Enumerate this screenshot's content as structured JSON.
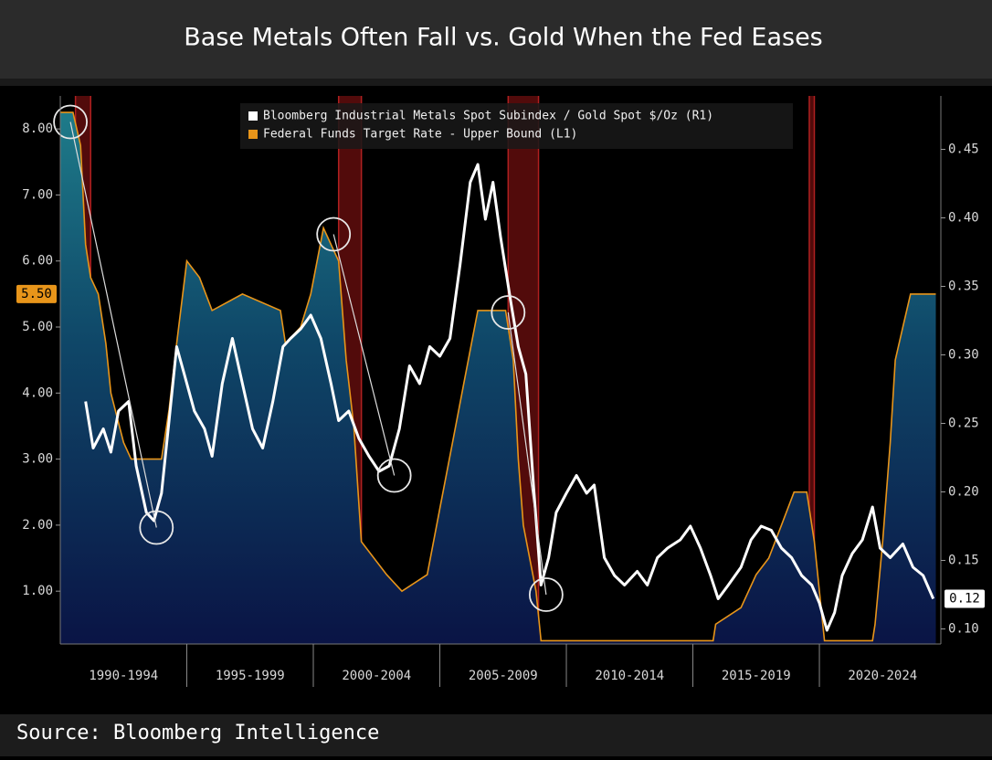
{
  "chart_data": {
    "type": "line-area",
    "title": "Base Metals Often Fall vs. Gold When the Fed Eases",
    "source": "Source: Bloomberg Intelligence",
    "xlim": [
      1990,
      2024.8
    ],
    "xticks": [
      {
        "value": 1992.5,
        "label": "1990-1994"
      },
      {
        "value": 1997.5,
        "label": "1995-1999"
      },
      {
        "value": 2002.5,
        "label": "2000-2004"
      },
      {
        "value": 2007.5,
        "label": "2005-2009"
      },
      {
        "value": 2012.5,
        "label": "2010-2014"
      },
      {
        "value": 2017.5,
        "label": "2015-2019"
      },
      {
        "value": 2022.5,
        "label": "2020-2024"
      }
    ],
    "ylim": [
      0.2,
      8.5
    ],
    "yticks": [
      {
        "value": 1,
        "label": "1.00"
      },
      {
        "value": 2,
        "label": "2.00"
      },
      {
        "value": 3,
        "label": "3.00"
      },
      {
        "value": 4,
        "label": "4.00"
      },
      {
        "value": 5,
        "label": "5.00"
      },
      {
        "value": 6,
        "label": "6.00"
      },
      {
        "value": 7,
        "label": "7.00"
      },
      {
        "value": 8,
        "label": "8.00"
      }
    ],
    "y2lim": [
      0.089,
      0.489
    ],
    "y2ticks": [
      {
        "value": 0.1,
        "label": "0.10"
      },
      0.15,
      {
        "value": 0.2,
        "label": "0.20"
      },
      0.25,
      {
        "value": 0.3,
        "label": "0.30"
      },
      0.35,
      {
        "value": 0.4,
        "label": "0.40"
      },
      0.45
    ],
    "easing_periods": [
      [
        1990.6,
        1991.2
      ],
      [
        2001.0,
        2001.9
      ],
      [
        2007.7,
        2008.9
      ],
      [
        2019.6,
        2019.8
      ]
    ],
    "highlights": [
      {
        "x": 1990.4,
        "y2": 0.47
      },
      {
        "x": 1993.8,
        "y2": 0.174
      },
      {
        "x": 2000.8,
        "y2": 0.388
      },
      {
        "x": 2003.2,
        "y2": 0.212
      },
      {
        "x": 2007.7,
        "y2": 0.331
      },
      {
        "x": 2009.2,
        "y2": 0.125
      }
    ],
    "series": [
      {
        "name": "Bloomberg Industrial Metals Spot Subindex / Gold Spot $/Oz (R1)",
        "color": "#ffffff",
        "axis": "y2",
        "style": "line",
        "x": [
          1991.0,
          1991.3,
          1991.7,
          1992.0,
          1992.3,
          1992.7,
          1993.0,
          1993.4,
          1993.7,
          1994.0,
          1994.3,
          1994.6,
          1994.9,
          1995.3,
          1995.7,
          1996.0,
          1996.4,
          1996.8,
          1997.2,
          1997.6,
          1998.0,
          1998.4,
          1998.8,
          1999.1,
          1999.5,
          1999.9,
          2000.3,
          2000.7,
          2001.0,
          2001.4,
          2001.8,
          2002.2,
          2002.6,
          2003.0,
          2003.4,
          2003.8,
          2004.2,
          2004.6,
          2005.0,
          2005.4,
          2005.8,
          2006.2,
          2006.5,
          2006.8,
          2007.1,
          2007.4,
          2007.8,
          2008.1,
          2008.4,
          2008.7,
          2009.0,
          2009.3,
          2009.6,
          2010.0,
          2010.4,
          2010.8,
          2011.1,
          2011.5,
          2011.9,
          2012.3,
          2012.8,
          2013.2,
          2013.6,
          2014.0,
          2014.5,
          2014.9,
          2015.3,
          2015.7,
          2016.0,
          2016.4,
          2016.9,
          2017.3,
          2017.7,
          2018.1,
          2018.5,
          2018.9,
          2019.3,
          2019.7,
          2020.0,
          2020.3,
          2020.6,
          2020.9,
          2021.3,
          2021.7,
          2022.1,
          2022.4,
          2022.8,
          2023.3,
          2023.7,
          2024.1,
          2024.5
        ],
        "values": [
          0.266,
          0.232,
          0.246,
          0.229,
          0.259,
          0.266,
          0.219,
          0.185,
          0.179,
          0.199,
          0.252,
          0.306,
          0.286,
          0.259,
          0.246,
          0.226,
          0.279,
          0.312,
          0.279,
          0.246,
          0.232,
          0.266,
          0.306,
          0.312,
          0.319,
          0.329,
          0.312,
          0.279,
          0.252,
          0.259,
          0.239,
          0.226,
          0.215,
          0.219,
          0.246,
          0.292,
          0.279,
          0.306,
          0.299,
          0.312,
          0.366,
          0.426,
          0.439,
          0.399,
          0.426,
          0.386,
          0.339,
          0.306,
          0.286,
          0.205,
          0.132,
          0.152,
          0.185,
          0.199,
          0.212,
          0.199,
          0.205,
          0.152,
          0.139,
          0.132,
          0.142,
          0.132,
          0.152,
          0.159,
          0.165,
          0.175,
          0.159,
          0.139,
          0.122,
          0.132,
          0.145,
          0.165,
          0.175,
          0.172,
          0.159,
          0.152,
          0.139,
          0.132,
          0.119,
          0.099,
          0.112,
          0.139,
          0.155,
          0.165,
          0.189,
          0.159,
          0.152,
          0.162,
          0.145,
          0.139,
          0.122
        ],
        "last_value_label": "0.12"
      },
      {
        "name": "Federal Funds Target Rate - Upper Bound (L1)",
        "color": "#e8951a",
        "axis": "y",
        "style": "area",
        "x": [
          1990.0,
          1990.5,
          1990.8,
          1991.0,
          1991.2,
          1991.5,
          1991.8,
          1992.0,
          1992.5,
          1992.8,
          1994.0,
          1994.3,
          1994.6,
          1995.0,
          1995.5,
          1996.0,
          1997.2,
          1998.7,
          1998.9,
          1999.5,
          1999.9,
          2000.4,
          2001.0,
          2001.3,
          2001.6,
          2001.9,
          2002.9,
          2003.5,
          2004.5,
          2005.0,
          2005.5,
          2006.0,
          2006.5,
          2007.6,
          2007.9,
          2008.1,
          2008.3,
          2008.8,
          2009.0,
          2015.8,
          2015.9,
          2016.9,
          2017.5,
          2018.0,
          2018.5,
          2019.0,
          2019.5,
          2019.8,
          2020.2,
          2022.1,
          2022.2,
          2022.5,
          2022.8,
          2023.0,
          2023.3,
          2023.6,
          2024.6
        ],
        "values": [
          8.25,
          8.25,
          7.75,
          6.25,
          5.75,
          5.5,
          4.75,
          4.0,
          3.25,
          3.0,
          3.0,
          3.75,
          4.75,
          6.0,
          5.75,
          5.25,
          5.5,
          5.25,
          4.75,
          5.0,
          5.5,
          6.5,
          6.0,
          4.5,
          3.5,
          1.75,
          1.25,
          1.0,
          1.25,
          2.25,
          3.25,
          4.25,
          5.25,
          5.25,
          4.5,
          3.0,
          2.0,
          1.0,
          0.25,
          0.25,
          0.5,
          0.75,
          1.25,
          1.5,
          2.0,
          2.5,
          2.5,
          1.75,
          0.25,
          0.25,
          0.5,
          1.75,
          3.25,
          4.5,
          5.0,
          5.5,
          5.5
        ],
        "last_value_label": "5.50"
      }
    ]
  }
}
